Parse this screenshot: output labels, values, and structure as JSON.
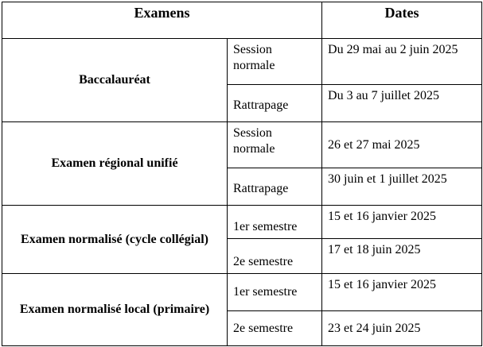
{
  "header": {
    "exams": "Examens",
    "dates": "Dates"
  },
  "rows": [
    {
      "exam": "Baccalauréat",
      "sessions": [
        {
          "session": "Session normale",
          "date": "Du 29 mai au 2 juin 2025"
        },
        {
          "session": "Rattrapage",
          "date": "Du 3 au 7 juillet 2025"
        }
      ]
    },
    {
      "exam": "Examen régional unifié",
      "sessions": [
        {
          "session": "Session normale",
          "date": "26 et 27 mai 2025"
        },
        {
          "session": "Rattrapage",
          "date": "30 juin et 1 juillet 2025"
        }
      ]
    },
    {
      "exam": "Examen normalisé (cycle collégial)",
      "sessions": [
        {
          "session": "1er semestre",
          "date": "15 et 16 janvier 2025"
        },
        {
          "session": "2e semestre",
          "date": "17 et 18 juin 2025"
        }
      ]
    },
    {
      "exam": "Examen normalisé local (primaire)",
      "sessions": [
        {
          "session": "1er semestre",
          "date": "15 et 16 janvier 2025"
        },
        {
          "session": "2e semestre",
          "date": "23 et 24 juin 2025"
        }
      ]
    }
  ]
}
